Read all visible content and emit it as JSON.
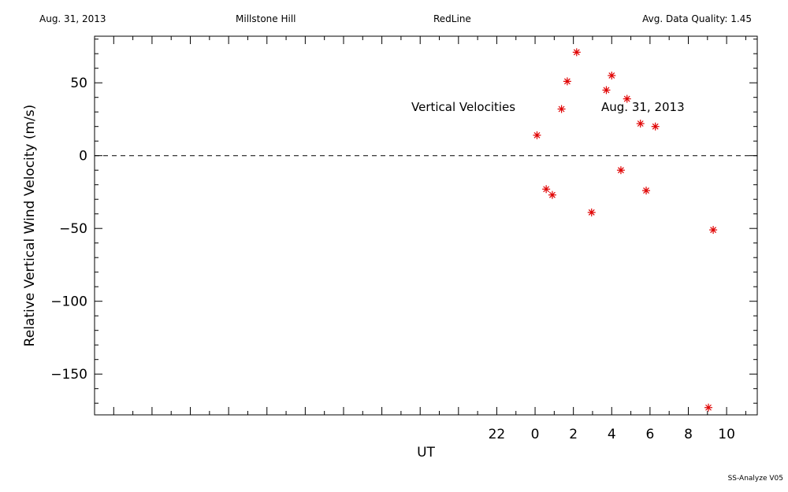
{
  "header": {
    "date": "Aug. 31, 2013",
    "station": "Millstone Hill",
    "filter": "RedLine",
    "quality": "Avg. Data Quality: 1.45"
  },
  "footer": "SS-Analyze V05",
  "chart_data": {
    "type": "scatter",
    "title": "",
    "xlabel": "UT",
    "ylabel": "Relative Vertical Wind Velocity (m/s)",
    "xlim": [
      -23,
      11.6
    ],
    "ylim": [
      -178,
      82
    ],
    "x_ticks": [
      22,
      0,
      2,
      4,
      6,
      8,
      10
    ],
    "y_ticks": [
      50,
      0,
      -50,
      -100,
      -150
    ],
    "zero_line": "dashed",
    "grid": false,
    "marker": "asterisk",
    "marker_color": "#e00000",
    "annotations": [
      "Vertical Velocities",
      "Aug. 31, 2013"
    ],
    "series": [
      {
        "points": [
          {
            "x": 0.1,
            "y": 14
          },
          {
            "x": 0.58,
            "y": -23
          },
          {
            "x": 0.9,
            "y": -27
          },
          {
            "x": 1.38,
            "y": 32
          },
          {
            "x": 1.68,
            "y": 51
          },
          {
            "x": 2.17,
            "y": 71
          },
          {
            "x": 2.95,
            "y": -39
          },
          {
            "x": 3.72,
            "y": 45
          },
          {
            "x": 4.0,
            "y": 55
          },
          {
            "x": 4.48,
            "y": -10
          },
          {
            "x": 4.8,
            "y": 39
          },
          {
            "x": 5.5,
            "y": 22
          },
          {
            "x": 5.8,
            "y": -24
          },
          {
            "x": 6.28,
            "y": 20
          },
          {
            "x": 9.05,
            "y": -173
          },
          {
            "x": 9.3,
            "y": -51
          }
        ]
      }
    ]
  }
}
